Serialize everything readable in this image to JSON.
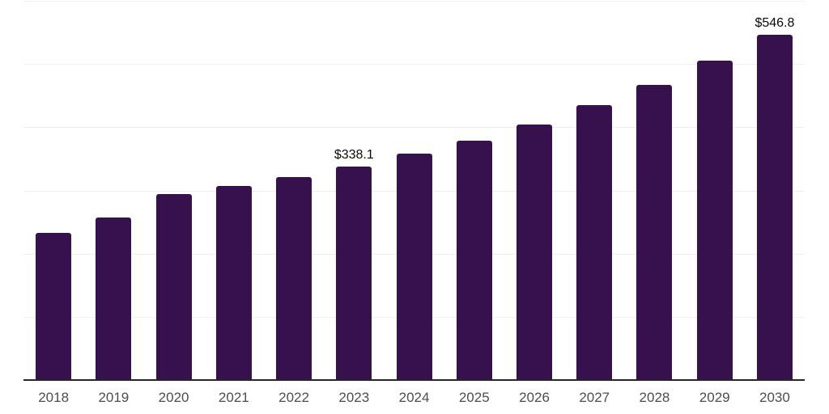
{
  "chart_data": {
    "type": "bar",
    "title": "",
    "xlabel": "",
    "ylabel": "",
    "categories": [
      "2018",
      "2019",
      "2020",
      "2021",
      "2022",
      "2023",
      "2024",
      "2025",
      "2026",
      "2027",
      "2028",
      "2029",
      "2030"
    ],
    "values": [
      232.9,
      257.0,
      294.6,
      307.4,
      321.5,
      338.1,
      358.0,
      379.2,
      404.4,
      435.0,
      466.4,
      505.0,
      546.8
    ],
    "bar_labels": [
      "",
      "",
      "",
      "",
      "",
      "$338.1",
      "",
      "",
      "",
      "",
      "",
      "",
      "$546.8"
    ],
    "value_prefix": "$",
    "ylim": [
      0,
      600
    ],
    "grid_step": 100,
    "grid": "horizontal gridlines only, no y-axis tick labels, no legend",
    "legend_position": "none",
    "colors": {
      "bar": "#37114d",
      "axis_line": "#262626",
      "gridline": "#efefef",
      "tick_label": "#4d4d4d",
      "value_label": "#0a0a0a",
      "background": "#ffffff"
    }
  }
}
